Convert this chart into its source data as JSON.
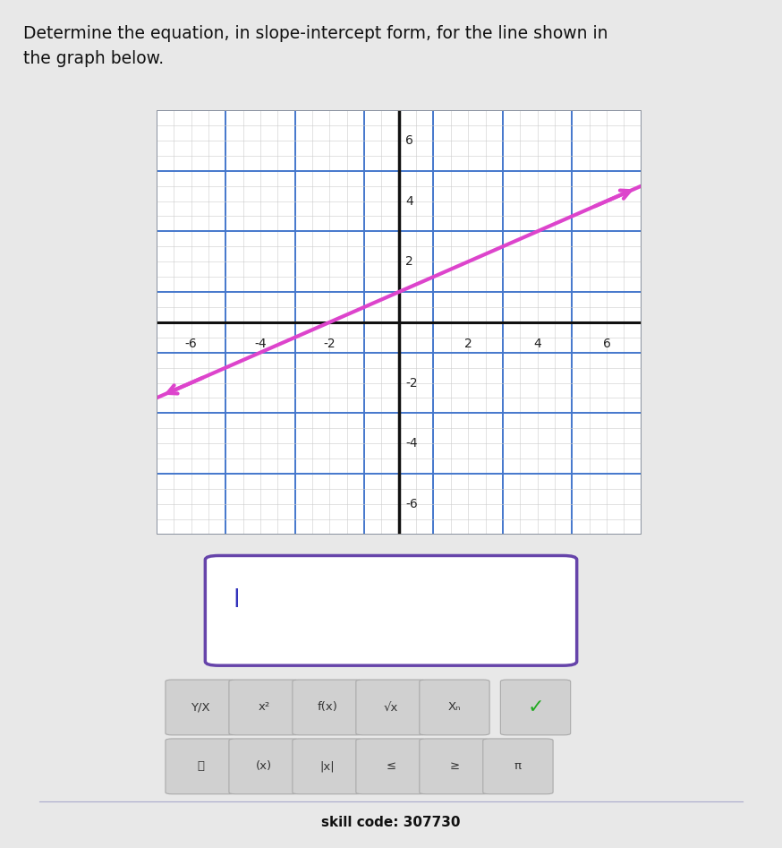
{
  "title_text": "Determine the equation, in slope-intercept form, for the line shown in\nthe graph below.",
  "title_fontsize": 13.5,
  "background_color": "#e8e8e8",
  "graph_bg": "#ffffff",
  "grid_minor_color": "#cccccc",
  "grid_major_color": "#4477cc",
  "axis_color": "#111111",
  "line_color": "#dd44cc",
  "line_width": 3.0,
  "xlim": [
    -7,
    7
  ],
  "ylim": [
    -7,
    7
  ],
  "slope": 0.5,
  "intercept": 1.0,
  "x_start": -7,
  "x_end": 7,
  "skill_code": "skill code: 307730",
  "input_box_color": "#6644aa",
  "button_bg": "#d0d0d0",
  "checkmark_color": "#22aa22"
}
